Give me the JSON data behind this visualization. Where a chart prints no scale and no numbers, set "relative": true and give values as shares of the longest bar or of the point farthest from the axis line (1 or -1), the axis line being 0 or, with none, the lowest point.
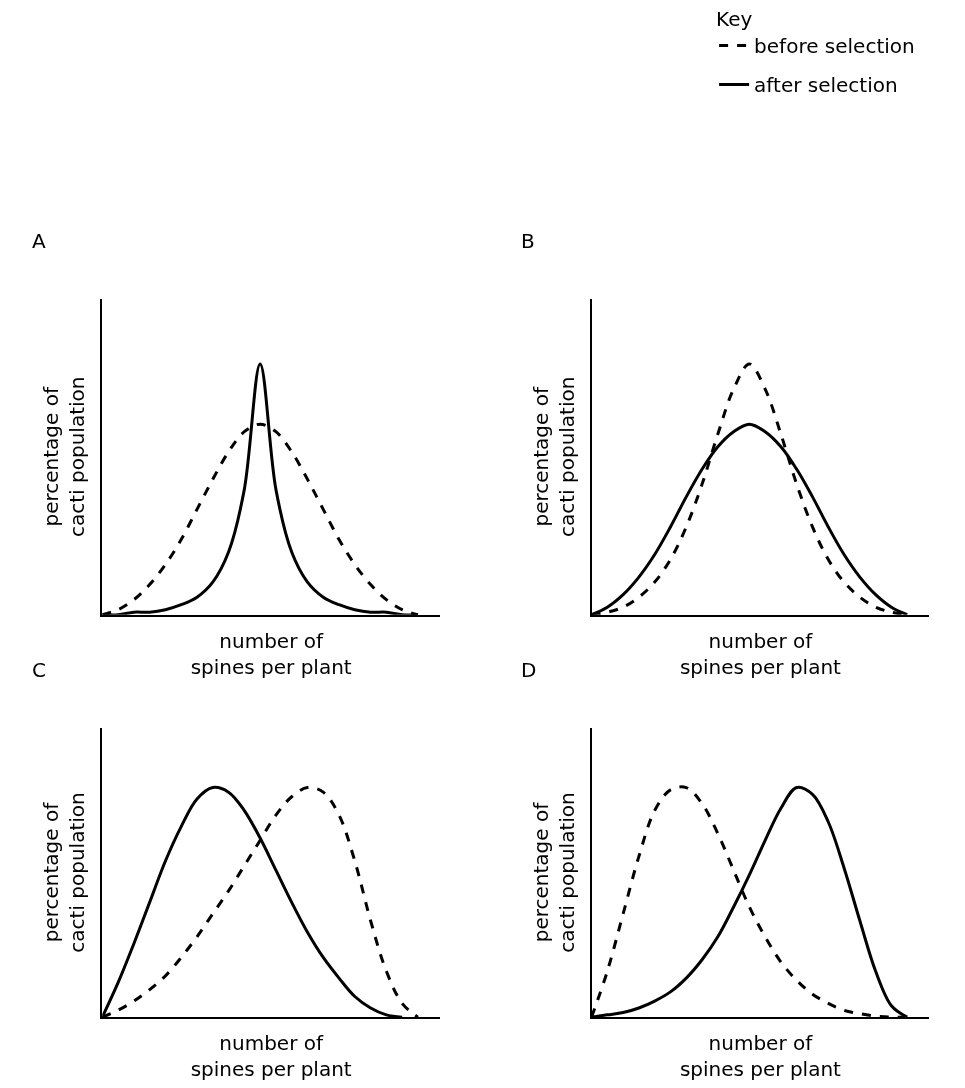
{
  "chart_data": [
    {
      "type": "line",
      "title": "A",
      "xlabel": "number of\nspines per plant",
      "ylabel": "percentage of\ncacti population",
      "relative": true,
      "legend": "top right",
      "legend_title": "Key",
      "tick_labels": false,
      "categories": [
        null,
        null,
        null,
        null,
        null,
        null,
        null,
        null,
        null,
        null,
        null,
        null,
        null,
        null,
        null,
        null,
        null,
        null,
        null,
        null,
        null
      ],
      "series": [
        {
          "name": "before selection",
          "color": "#000000",
          "line_style": "dashed",
          "values": [
            0,
            0.02,
            0.06,
            0.12,
            0.2,
            0.3,
            0.42,
            0.54,
            0.65,
            0.73,
            0.76,
            0.73,
            0.65,
            0.54,
            0.42,
            0.3,
            0.2,
            0.12,
            0.06,
            0.02,
            0
          ]
        },
        {
          "name": "after selection",
          "color": "#000000",
          "line_style": "solid",
          "values": [
            0,
            0,
            0.01,
            0.01,
            0.02,
            0.04,
            0.07,
            0.13,
            0.25,
            0.5,
            1,
            0.5,
            0.25,
            0.13,
            0.07,
            0.04,
            0.02,
            0.01,
            0.01,
            0,
            0
          ]
        }
      ]
    },
    {
      "type": "line",
      "title": "B",
      "xlabel": "number of\nspines per plant",
      "ylabel": "percentage of\ncacti population",
      "relative": true,
      "tick_labels": false,
      "categories": [
        null,
        null,
        null,
        null,
        null,
        null,
        null,
        null,
        null,
        null,
        null,
        null,
        null,
        null,
        null,
        null,
        null,
        null,
        null,
        null,
        null
      ],
      "series": [
        {
          "color": "#000000",
          "line_style": "dashed",
          "values": [
            0,
            0.01,
            0.03,
            0.07,
            0.13,
            0.22,
            0.35,
            0.52,
            0.72,
            0.9,
            1,
            0.9,
            0.72,
            0.52,
            0.35,
            0.22,
            0.13,
            0.07,
            0.03,
            0.01,
            0
          ]
        },
        {
          "color": "#000000",
          "line_style": "solid",
          "values": [
            0,
            0.03,
            0.08,
            0.15,
            0.24,
            0.35,
            0.47,
            0.58,
            0.67,
            0.73,
            0.76,
            0.73,
            0.67,
            0.58,
            0.47,
            0.35,
            0.24,
            0.15,
            0.08,
            0.03,
            0
          ]
        }
      ]
    },
    {
      "type": "line",
      "title": "C",
      "xlabel": "number of\nspines per plant",
      "ylabel": "percentage of\ncacti population",
      "relative": true,
      "tick_labels": false,
      "categories": [
        null,
        null,
        null,
        null,
        null,
        null,
        null,
        null,
        null,
        null,
        null,
        null,
        null,
        null,
        null,
        null,
        null,
        null,
        null,
        null,
        null
      ],
      "series": [
        {
          "color": "#000000",
          "line_style": "dashed",
          "values": [
            0,
            0.03,
            0.07,
            0.12,
            0.18,
            0.26,
            0.35,
            0.45,
            0.55,
            0.66,
            0.77,
            0.88,
            0.96,
            1,
            0.98,
            0.88,
            0.68,
            0.42,
            0.2,
            0.06,
            0
          ]
        },
        {
          "color": "#000000",
          "line_style": "solid",
          "values": [
            0,
            0.15,
            0.32,
            0.5,
            0.68,
            0.83,
            0.95,
            1,
            0.98,
            0.9,
            0.78,
            0.64,
            0.5,
            0.37,
            0.26,
            0.17,
            0.09,
            0.04,
            0.01,
            0,
            null
          ]
        }
      ]
    },
    {
      "type": "line",
      "title": "D",
      "xlabel": "number of\nspines per plant",
      "ylabel": "percentage of\ncacti population",
      "relative": true,
      "tick_labels": false,
      "categories": [
        null,
        null,
        null,
        null,
        null,
        null,
        null,
        null,
        null,
        null,
        null,
        null,
        null,
        null,
        null,
        null,
        null,
        null,
        null,
        null,
        null
      ],
      "series": [
        {
          "color": "#000000",
          "line_style": "dashed",
          "values": [
            0,
            0.2,
            0.45,
            0.7,
            0.9,
            0.99,
            1,
            0.93,
            0.8,
            0.64,
            0.48,
            0.35,
            0.24,
            0.16,
            0.1,
            0.06,
            0.03,
            0.015,
            0.005,
            0,
            0
          ]
        },
        {
          "color": "#000000",
          "line_style": "solid",
          "values": [
            0,
            0.01,
            0.02,
            0.04,
            0.07,
            0.11,
            0.17,
            0.25,
            0.35,
            0.48,
            0.62,
            0.77,
            0.91,
            1,
            0.97,
            0.85,
            0.65,
            0.42,
            0.2,
            0.05,
            0
          ]
        }
      ]
    }
  ]
}
